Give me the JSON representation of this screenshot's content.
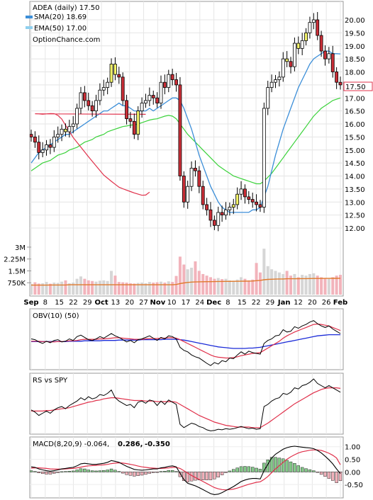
{
  "header": {
    "symbol_line": "ADEA (daily) 17.50",
    "sma_line": "SMA(20) 18.69",
    "ema_line": "EMA(50) 17.00",
    "site": "OptionChance.com"
  },
  "colors": {
    "sma": "#3b8ed8",
    "ema": "#8fd0ef",
    "ma_red": "#e0304a",
    "ma_green": "#3bd23b",
    "ma_black": "#000000",
    "up_fill": "#ffffff",
    "down_fill": "#cc2f38",
    "highlight": "#f3f36a",
    "vol_up": "#d6d6d6",
    "vol_down": "#f2b3bb",
    "vol_avg": "#e07a2c",
    "obv_blue": "#1b2bd8",
    "macd_red": "#e0304a",
    "hist_up": "#85c98a",
    "hist_down": "#f0b2bb"
  },
  "chart_data": [
    {
      "panel": "price",
      "type": "candlestick",
      "ylim": [
        11.2,
        20.5
      ],
      "yticks": [
        "20.00",
        "19.50",
        "19.00",
        "18.50",
        "18.00",
        "17.50",
        "17.00",
        "16.50",
        "16.00",
        "15.50",
        "15.00",
        "14.50",
        "14.00",
        "13.50",
        "13.00",
        "12.50",
        "12.00"
      ],
      "xticks": [
        "Sep",
        "8",
        "15",
        "22",
        "29",
        "Oct",
        "13",
        "20",
        "27",
        "Nov",
        "10",
        "17",
        "24",
        "Dec",
        "8",
        "15",
        "22",
        "29",
        "Jan",
        "12",
        "20",
        "26",
        "Feb"
      ],
      "close_series": [
        15.5,
        15.3,
        14.9,
        15.0,
        15.2,
        15.1,
        15.5,
        15.6,
        15.8,
        15.7,
        15.9,
        16.0,
        16.6,
        17.2,
        16.9,
        16.7,
        16.5,
        16.9,
        17.3,
        17.4,
        17.6,
        18.3,
        17.9,
        17.8,
        16.9,
        16.2,
        16.1,
        15.6,
        16.5,
        16.8,
        16.9,
        17.1,
        17.0,
        16.8,
        17.6,
        17.4,
        17.9,
        17.7,
        17.5,
        14.0,
        13.0,
        13.6,
        14.3,
        14.2,
        13.6,
        12.9,
        12.7,
        12.3,
        12.1,
        12.6,
        12.5,
        12.7,
        12.8,
        12.9,
        13.3,
        13.5,
        13.2,
        13.1,
        13.0,
        12.9,
        12.8,
        16.6,
        17.4,
        17.6,
        17.7,
        17.8,
        18.5,
        18.4,
        18.2,
        19.1,
        18.9,
        19.2,
        19.5,
        19.9,
        20.0,
        19.4,
        18.8,
        18.5,
        18.7,
        18.0,
        17.6,
        17.5
      ],
      "close_display": "17.50",
      "series": [
        {
          "name": "SMA(20)",
          "values": [
            14.5,
            14.7,
            14.9,
            15.0,
            15.1,
            15.2,
            15.3,
            15.4,
            15.5,
            15.6,
            15.6,
            15.7,
            15.8,
            15.9,
            16.0,
            16.1,
            16.2,
            16.3,
            16.4,
            16.5,
            16.5,
            16.6,
            16.7,
            16.8,
            16.7,
            16.7,
            16.6,
            16.5,
            16.5,
            16.5,
            16.5,
            16.6,
            16.5,
            16.6,
            16.7,
            16.8,
            16.9,
            17.0,
            17.0,
            16.9,
            16.6,
            16.2,
            15.8,
            15.3,
            14.8,
            14.4,
            14.0,
            13.6,
            13.3,
            13.0,
            12.8,
            12.7,
            12.6,
            12.6,
            12.6,
            12.6,
            12.6,
            12.6,
            12.7,
            12.7,
            12.8,
            13.2,
            13.6,
            14.2,
            14.8,
            15.3,
            15.8,
            16.2,
            16.6,
            17.0,
            17.4,
            17.7,
            18.0,
            18.3,
            18.5,
            18.6,
            18.7,
            18.8,
            18.8,
            18.7,
            18.7,
            18.69
          ]
        },
        {
          "name": "EMA(50)",
          "values": [
            14.2,
            14.3,
            14.4,
            14.5,
            14.55,
            14.6,
            14.7,
            14.8,
            14.85,
            14.9,
            15.0,
            15.05,
            15.1,
            15.2,
            15.3,
            15.35,
            15.4,
            15.5,
            15.55,
            15.6,
            15.7,
            15.75,
            15.8,
            15.85,
            15.9,
            15.92,
            15.95,
            15.97,
            16.0,
            16.05,
            16.1,
            16.15,
            16.18,
            16.2,
            16.25,
            16.3,
            16.33,
            16.3,
            16.2,
            16.0,
            15.8,
            15.6,
            15.45,
            15.3,
            15.15,
            15.0,
            14.85,
            14.7,
            14.55,
            14.4,
            14.3,
            14.2,
            14.1,
            14.0,
            13.95,
            13.9,
            13.85,
            13.8,
            13.75,
            13.7,
            13.7,
            13.8,
            13.95,
            14.1,
            14.3,
            14.5,
            14.7,
            14.9,
            15.1,
            15.3,
            15.5,
            15.7,
            15.9,
            16.1,
            16.3,
            16.45,
            16.6,
            16.7,
            16.8,
            16.9,
            16.95,
            17.0
          ]
        }
      ]
    },
    {
      "panel": "volume",
      "type": "bar",
      "yticks": [
        "3M",
        "2.25M",
        "1.5M",
        "750K"
      ],
      "ylim": [
        0,
        3400000
      ],
      "values": [
        680,
        780,
        700,
        720,
        800,
        690,
        760,
        740,
        820,
        900,
        720,
        760,
        1000,
        1150,
        1000,
        900,
        860,
        820,
        880,
        900,
        860,
        1500,
        1200,
        800,
        780,
        760,
        720,
        700,
        740,
        760,
        720,
        800,
        760,
        780,
        820,
        760,
        840,
        800,
        1180,
        2400,
        1900,
        1600,
        1700,
        2100,
        1500,
        1300,
        1200,
        1100,
        1000,
        1050,
        980,
        1000,
        900,
        880,
        950,
        1100,
        1000,
        900,
        950,
        2000,
        1400,
        2900,
        1800,
        1600,
        1500,
        1400,
        1300,
        1500,
        1200,
        1300,
        1100,
        1250,
        1200,
        1300,
        1350,
        1200,
        1100,
        1050,
        1000,
        1100,
        1200,
        1250
      ],
      "avg_values": [
        600,
        600,
        600,
        600,
        600,
        610,
        610,
        610,
        610,
        610,
        620,
        620,
        620,
        620,
        620,
        620,
        620,
        620,
        620,
        620,
        620,
        620,
        620,
        620,
        620,
        620,
        620,
        620,
        620,
        620,
        620,
        620,
        620,
        620,
        620,
        620,
        620,
        620,
        640,
        700,
        740,
        770,
        790,
        800,
        810,
        815,
        820,
        820,
        825,
        830,
        830,
        835,
        835,
        840,
        840,
        845,
        850,
        855,
        860,
        880,
        900,
        940,
        960,
        970,
        980,
        990,
        990,
        1000,
        1000,
        1000,
        1005,
        1010,
        1010,
        1015,
        1020,
        1020,
        1020,
        1025,
        1025,
        1030,
        1030,
        1035
      ]
    },
    {
      "panel": "obv",
      "type": "line",
      "title": "OBV(10) (50)",
      "series": [
        {
          "name": "OBV",
          "values": [
            0.52,
            0.5,
            0.44,
            0.4,
            0.46,
            0.42,
            0.48,
            0.5,
            0.44,
            0.46,
            0.52,
            0.48,
            0.58,
            0.62,
            0.56,
            0.5,
            0.48,
            0.52,
            0.58,
            0.54,
            0.6,
            0.66,
            0.6,
            0.56,
            0.5,
            0.44,
            0.48,
            0.42,
            0.5,
            0.52,
            0.56,
            0.6,
            0.54,
            0.48,
            0.56,
            0.52,
            0.6,
            0.58,
            0.52,
            0.3,
            0.22,
            0.18,
            0.1,
            0.05,
            0.02,
            -0.05,
            -0.12,
            -0.18,
            -0.1,
            -0.14,
            -0.05,
            -0.08,
            0.02,
            0.0,
            0.1,
            0.18,
            0.12,
            0.2,
            0.16,
            0.14,
            0.12,
            0.4,
            0.48,
            0.52,
            0.6,
            0.62,
            0.76,
            0.7,
            0.72,
            0.84,
            0.8,
            0.86,
            0.9,
            0.96,
            1.0,
            0.92,
            0.86,
            0.82,
            0.86,
            0.78,
            0.72,
            0.66
          ]
        },
        {
          "name": "OBV avg red",
          "values": [
            0.46,
            0.46,
            0.46,
            0.45,
            0.45,
            0.44,
            0.44,
            0.45,
            0.45,
            0.46,
            0.47,
            0.47,
            0.48,
            0.5,
            0.51,
            0.51,
            0.51,
            0.51,
            0.52,
            0.52,
            0.53,
            0.54,
            0.55,
            0.55,
            0.54,
            0.53,
            0.52,
            0.51,
            0.51,
            0.51,
            0.52,
            0.53,
            0.53,
            0.53,
            0.54,
            0.54,
            0.55,
            0.55,
            0.54,
            0.5,
            0.45,
            0.4,
            0.35,
            0.3,
            0.25,
            0.2,
            0.15,
            0.1,
            0.06,
            0.04,
            0.03,
            0.02,
            0.02,
            0.03,
            0.05,
            0.08,
            0.1,
            0.12,
            0.14,
            0.15,
            0.16,
            0.22,
            0.28,
            0.34,
            0.4,
            0.46,
            0.54,
            0.6,
            0.65,
            0.7,
            0.74,
            0.78,
            0.82,
            0.86,
            0.9,
            0.91,
            0.9,
            0.88,
            0.86,
            0.82,
            0.78,
            0.74
          ]
        },
        {
          "name": "OBV avg blue",
          "values": [
            0.45,
            0.45,
            0.45,
            0.45,
            0.45,
            0.45,
            0.45,
            0.45,
            0.45,
            0.45,
            0.46,
            0.46,
            0.46,
            0.46,
            0.47,
            0.47,
            0.47,
            0.47,
            0.47,
            0.48,
            0.48,
            0.48,
            0.48,
            0.49,
            0.49,
            0.49,
            0.49,
            0.49,
            0.49,
            0.5,
            0.5,
            0.5,
            0.5,
            0.5,
            0.5,
            0.51,
            0.51,
            0.51,
            0.51,
            0.5,
            0.49,
            0.47,
            0.45,
            0.43,
            0.41,
            0.39,
            0.37,
            0.35,
            0.33,
            0.31,
            0.3,
            0.29,
            0.28,
            0.27,
            0.27,
            0.27,
            0.27,
            0.28,
            0.28,
            0.29,
            0.3,
            0.32,
            0.34,
            0.36,
            0.38,
            0.4,
            0.42,
            0.44,
            0.46,
            0.48,
            0.5,
            0.52,
            0.54,
            0.56,
            0.58,
            0.6,
            0.61,
            0.62,
            0.63,
            0.63,
            0.63,
            0.63
          ]
        }
      ]
    },
    {
      "panel": "rs",
      "type": "line",
      "title": "RS vs SPY",
      "series": [
        {
          "name": "RS",
          "values": [
            0.4,
            0.36,
            0.3,
            0.34,
            0.38,
            0.34,
            0.4,
            0.44,
            0.46,
            0.42,
            0.48,
            0.52,
            0.56,
            0.62,
            0.58,
            0.64,
            0.6,
            0.62,
            0.68,
            0.66,
            0.7,
            0.76,
            0.62,
            0.56,
            0.52,
            0.48,
            0.5,
            0.44,
            0.54,
            0.56,
            0.52,
            0.58,
            0.56,
            0.48,
            0.56,
            0.5,
            0.58,
            0.54,
            0.5,
            0.14,
            0.08,
            0.12,
            0.16,
            0.14,
            0.1,
            0.08,
            0.04,
            0.02,
            0.03,
            0.05,
            0.04,
            0.06,
            0.05,
            0.06,
            0.08,
            0.1,
            0.08,
            0.06,
            0.07,
            0.05,
            0.06,
            0.46,
            0.5,
            0.56,
            0.6,
            0.62,
            0.7,
            0.68,
            0.72,
            0.8,
            0.78,
            0.84,
            0.86,
            0.9,
            0.96,
            0.88,
            0.84,
            0.8,
            0.84,
            0.8,
            0.76,
            0.72
          ]
        },
        {
          "name": "RS avg",
          "values": [
            0.38,
            0.38,
            0.38,
            0.38,
            0.39,
            0.39,
            0.4,
            0.41,
            0.42,
            0.43,
            0.44,
            0.46,
            0.48,
            0.5,
            0.52,
            0.54,
            0.55,
            0.57,
            0.58,
            0.6,
            0.61,
            0.62,
            0.62,
            0.61,
            0.6,
            0.59,
            0.58,
            0.57,
            0.57,
            0.57,
            0.56,
            0.56,
            0.56,
            0.55,
            0.55,
            0.55,
            0.55,
            0.55,
            0.54,
            0.5,
            0.46,
            0.42,
            0.38,
            0.34,
            0.3,
            0.27,
            0.24,
            0.21,
            0.18,
            0.16,
            0.14,
            0.12,
            0.11,
            0.1,
            0.09,
            0.09,
            0.09,
            0.09,
            0.08,
            0.08,
            0.08,
            0.12,
            0.16,
            0.21,
            0.26,
            0.31,
            0.36,
            0.41,
            0.46,
            0.51,
            0.55,
            0.59,
            0.63,
            0.67,
            0.71,
            0.74,
            0.77,
            0.79,
            0.8,
            0.8,
            0.8,
            0.79
          ]
        }
      ]
    },
    {
      "panel": "macd",
      "type": "line",
      "title": "MACD(8,20,9)",
      "macd_value": "-0.064,",
      "signal_value": "0.286,",
      "hist_value": "-0.350",
      "yticks": [
        "1.00",
        "0.50",
        "0.00",
        "-0.50"
      ],
      "ylim": [
        -1.0,
        1.3
      ],
      "series": [
        {
          "name": "MACD",
          "values": [
            0.2,
            0.18,
            0.12,
            0.08,
            0.05,
            0.03,
            0.05,
            0.08,
            0.12,
            0.14,
            0.16,
            0.18,
            0.24,
            0.32,
            0.34,
            0.32,
            0.3,
            0.3,
            0.32,
            0.34,
            0.38,
            0.45,
            0.42,
            0.38,
            0.3,
            0.22,
            0.16,
            0.1,
            0.08,
            0.07,
            0.08,
            0.1,
            0.12,
            0.12,
            0.16,
            0.18,
            0.22,
            0.24,
            0.2,
            -0.05,
            -0.3,
            -0.45,
            -0.5,
            -0.55,
            -0.62,
            -0.7,
            -0.78,
            -0.86,
            -0.9,
            -0.88,
            -0.82,
            -0.74,
            -0.66,
            -0.58,
            -0.48,
            -0.38,
            -0.32,
            -0.28,
            -0.26,
            -0.26,
            -0.28,
            0.05,
            0.3,
            0.55,
            0.7,
            0.8,
            0.9,
            0.96,
            1.0,
            1.02,
            1.0,
            0.98,
            0.96,
            0.95,
            0.92,
            0.85,
            0.75,
            0.62,
            0.48,
            0.32,
            0.12,
            -0.064
          ]
        },
        {
          "name": "Signal",
          "values": [
            0.15,
            0.16,
            0.16,
            0.15,
            0.14,
            0.12,
            0.11,
            0.11,
            0.11,
            0.12,
            0.13,
            0.14,
            0.16,
            0.19,
            0.22,
            0.24,
            0.25,
            0.26,
            0.27,
            0.28,
            0.3,
            0.33,
            0.35,
            0.36,
            0.35,
            0.33,
            0.3,
            0.27,
            0.23,
            0.2,
            0.18,
            0.16,
            0.15,
            0.14,
            0.14,
            0.15,
            0.16,
            0.18,
            0.18,
            0.14,
            0.05,
            -0.05,
            -0.14,
            -0.22,
            -0.3,
            -0.38,
            -0.46,
            -0.54,
            -0.62,
            -0.67,
            -0.7,
            -0.71,
            -0.7,
            -0.68,
            -0.64,
            -0.59,
            -0.54,
            -0.49,
            -0.45,
            -0.41,
            -0.39,
            -0.3,
            -0.18,
            -0.03,
            0.12,
            0.25,
            0.38,
            0.5,
            0.6,
            0.68,
            0.75,
            0.8,
            0.83,
            0.86,
            0.87,
            0.87,
            0.85,
            0.8,
            0.74,
            0.66,
            0.55,
            0.286
          ]
        }
      ]
    }
  ]
}
